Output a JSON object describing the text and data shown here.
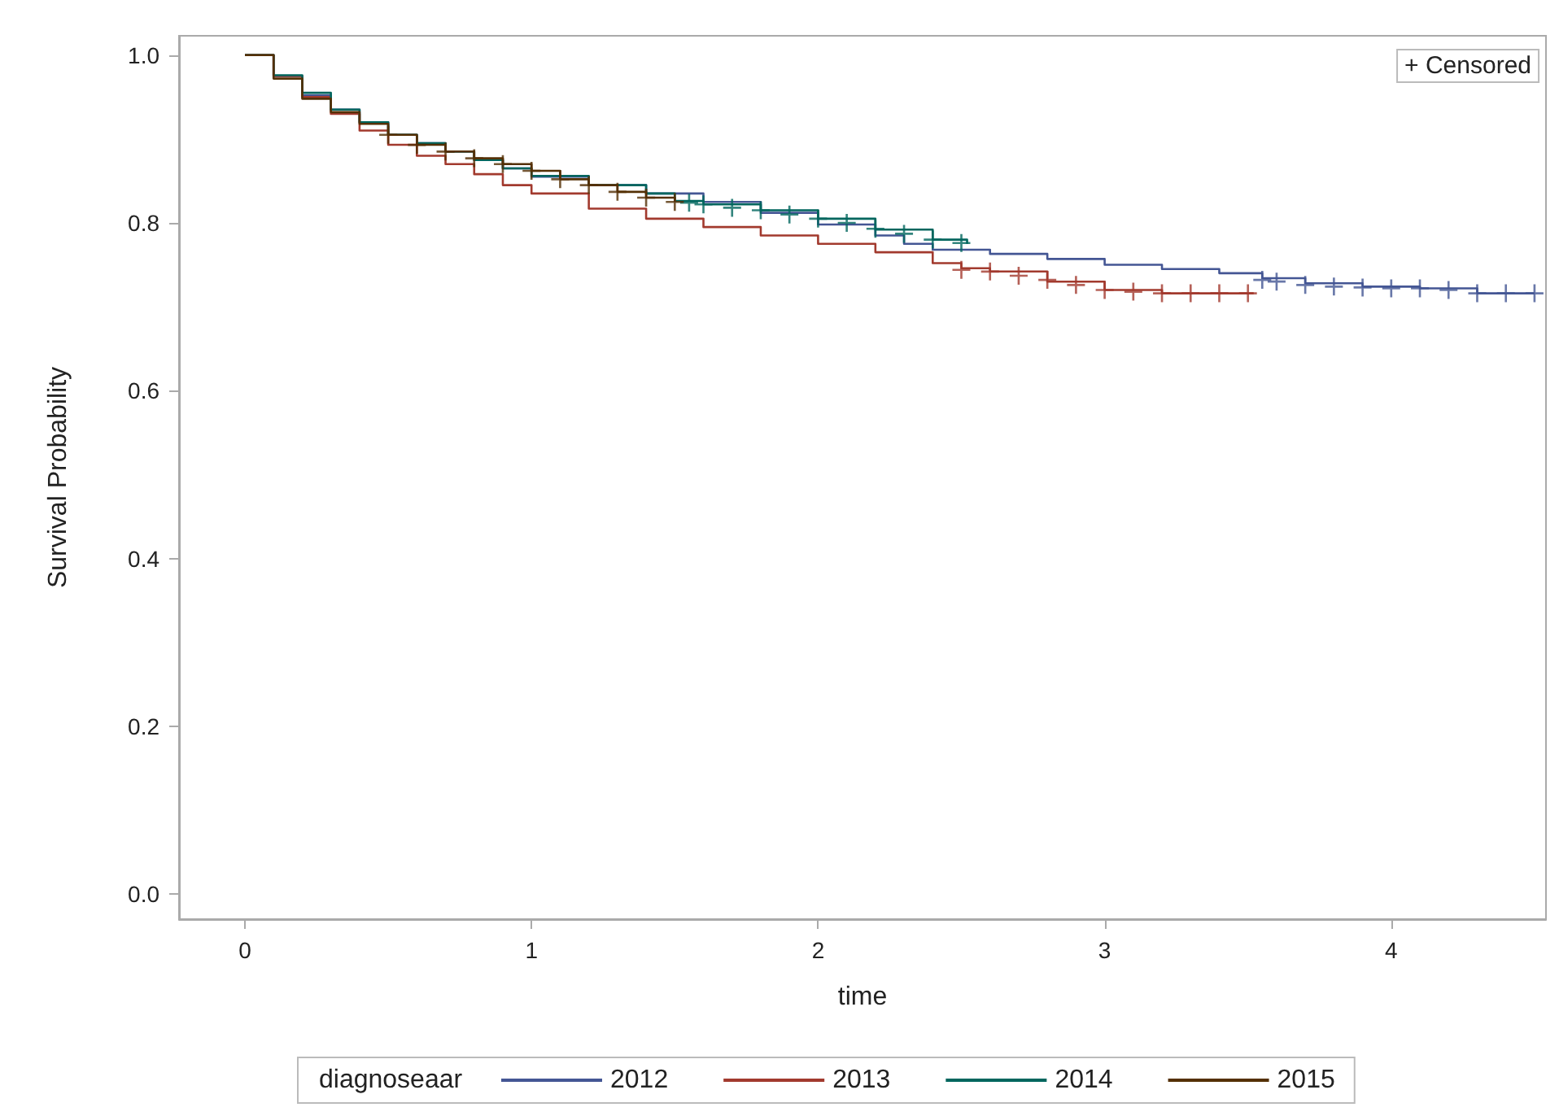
{
  "chart_data": {
    "type": "step",
    "xlabel": "time",
    "ylabel": "Survival Probability",
    "legend_title": "diagnoseaar",
    "legend": "bottom",
    "grid": false,
    "annotations": [
      "+ Censored"
    ],
    "xlim": [
      -0.23,
      4.54
    ],
    "xticks": [
      0,
      1,
      2,
      3,
      4
    ],
    "ylim": [
      -0.03,
      1.023
    ],
    "yticks": [
      {
        "value": 0,
        "label": "0.0"
      },
      {
        "value": 0.2,
        "label": "0.2"
      },
      {
        "value": 0.4,
        "label": "0.4"
      },
      {
        "value": 0.6,
        "label": "0.6"
      },
      {
        "value": 0.8,
        "label": "0.8"
      },
      {
        "value": 1,
        "label": "1.0"
      }
    ],
    "series": [
      {
        "name": "2012",
        "color": "#445694",
        "x": [
          0,
          0.1,
          0.2,
          0.3,
          0.4,
          0.5,
          0.6,
          0.7,
          0.8,
          0.9,
          1.0,
          1.2,
          1.4,
          1.6,
          1.8,
          2.0,
          2.2,
          2.3,
          2.4,
          2.6,
          2.8,
          3.0,
          3.2,
          3.4,
          3.55,
          3.7,
          3.9,
          4.1,
          4.3,
          4.5
        ],
        "values": [
          1.0,
          0.975,
          0.952,
          0.935,
          0.92,
          0.905,
          0.895,
          0.885,
          0.875,
          0.865,
          0.855,
          0.845,
          0.835,
          0.825,
          0.812,
          0.798,
          0.785,
          0.775,
          0.768,
          0.763,
          0.757,
          0.75,
          0.745,
          0.74,
          0.734,
          0.728,
          0.724,
          0.722,
          0.716,
          0.716
        ]
      },
      {
        "name": "2013",
        "color": "#a23a2e",
        "x": [
          0,
          0.1,
          0.2,
          0.3,
          0.4,
          0.5,
          0.6,
          0.7,
          0.8,
          0.9,
          1.0,
          1.2,
          1.4,
          1.6,
          1.8,
          2.0,
          2.2,
          2.4,
          2.5,
          2.6,
          2.8,
          3.0,
          3.2,
          3.4,
          3.52
        ],
        "values": [
          1.0,
          0.975,
          0.95,
          0.93,
          0.91,
          0.893,
          0.88,
          0.87,
          0.858,
          0.845,
          0.835,
          0.817,
          0.805,
          0.795,
          0.785,
          0.775,
          0.765,
          0.752,
          0.746,
          0.742,
          0.73,
          0.72,
          0.716,
          0.716,
          0.716
        ]
      },
      {
        "name": "2014",
        "color": "#01665e",
        "x": [
          0,
          0.1,
          0.2,
          0.3,
          0.4,
          0.5,
          0.6,
          0.7,
          0.8,
          0.9,
          1.0,
          1.2,
          1.4,
          1.5,
          1.6,
          1.8,
          2.0,
          2.2,
          2.4,
          2.52
        ],
        "values": [
          1.0,
          0.976,
          0.955,
          0.935,
          0.92,
          0.905,
          0.895,
          0.885,
          0.875,
          0.865,
          0.856,
          0.845,
          0.835,
          0.826,
          0.822,
          0.815,
          0.805,
          0.792,
          0.78,
          0.775
        ]
      },
      {
        "name": "2015",
        "color": "#543005",
        "x": [
          0,
          0.1,
          0.2,
          0.3,
          0.4,
          0.5,
          0.6,
          0.7,
          0.8,
          0.9,
          1.0,
          1.1,
          1.2,
          1.3,
          1.4,
          1.5
        ],
        "values": [
          1.0,
          0.972,
          0.948,
          0.932,
          0.918,
          0.905,
          0.893,
          0.885,
          0.877,
          0.87,
          0.862,
          0.852,
          0.845,
          0.837,
          0.83,
          0.825
        ]
      },
      {
        "type": "scatter",
        "marker": "cross",
        "color": "#445694",
        "x": [
          3.55,
          3.6,
          3.7,
          3.8,
          3.9,
          4.0,
          4.1,
          4.2,
          4.3,
          4.4,
          4.5
        ],
        "values": [
          0.732,
          0.73,
          0.726,
          0.724,
          0.723,
          0.722,
          0.722,
          0.72,
          0.716,
          0.716,
          0.716
        ]
      },
      {
        "type": "scatter",
        "marker": "cross",
        "color": "#a23a2e",
        "x": [
          2.5,
          2.6,
          2.7,
          2.8,
          2.9,
          3.0,
          3.1,
          3.2,
          3.3,
          3.4,
          3.5
        ],
        "values": [
          0.744,
          0.742,
          0.737,
          0.732,
          0.726,
          0.72,
          0.718,
          0.716,
          0.716,
          0.716,
          0.716
        ]
      },
      {
        "type": "scatter",
        "marker": "cross",
        "color": "#01665e",
        "x": [
          1.55,
          1.6,
          1.7,
          1.8,
          1.9,
          2.0,
          2.1,
          2.2,
          2.3,
          2.4,
          2.5
        ],
        "values": [
          0.824,
          0.822,
          0.818,
          0.815,
          0.81,
          0.805,
          0.8,
          0.793,
          0.787,
          0.78,
          0.776
        ]
      },
      {
        "type": "scatter",
        "marker": "cross",
        "color": "#543005",
        "x": [
          0.5,
          0.6,
          0.7,
          0.8,
          0.9,
          1.0,
          1.1,
          1.2,
          1.3,
          1.4,
          1.5
        ],
        "values": [
          0.905,
          0.893,
          0.885,
          0.877,
          0.87,
          0.862,
          0.852,
          0.845,
          0.837,
          0.83,
          0.825
        ]
      }
    ]
  }
}
